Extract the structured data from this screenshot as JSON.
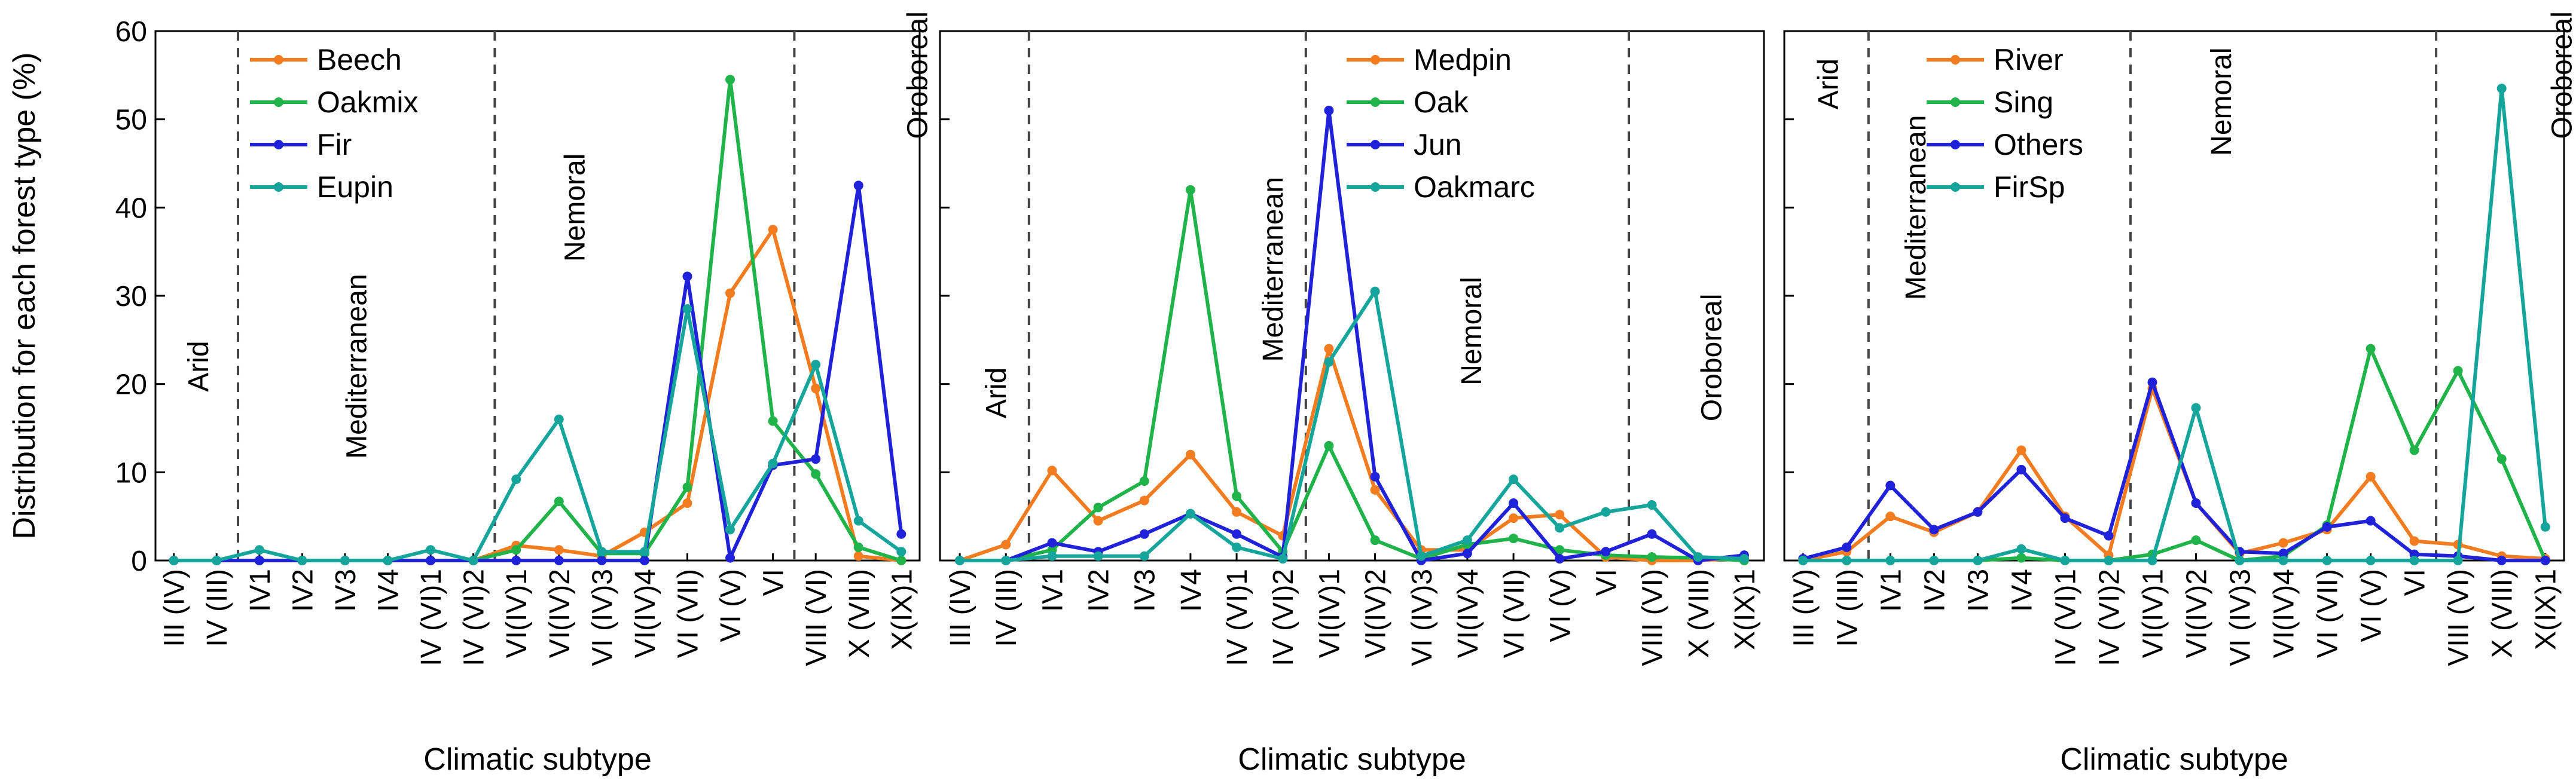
{
  "figure": {
    "ylabel": "Distribution  for each forest type  (%)",
    "xlabel": "Climatic subtype",
    "ylim": [
      0,
      60
    ],
    "yticks": [
      0,
      10,
      20,
      30,
      40,
      50,
      60
    ]
  },
  "chart_data": [
    {
      "type": "line",
      "panel": 1,
      "categories": [
        "III (IV)",
        "IV (III)",
        "IV1",
        "IV2",
        "IV3",
        "IV4",
        "IV (VI)1",
        "IV (VI)2",
        "VI(IV)1",
        "VI(IV)2",
        "VI (IV)3",
        "VI(IV)4",
        "VI (VII)",
        "VI (V)",
        "VI",
        "VIII (VI)",
        "X (VIII)",
        "X(IX)1"
      ],
      "xlabel": "Climatic subtype",
      "ylabel": "Distribution  for each forest type  (%)",
      "ylim": [
        0,
        60
      ],
      "show_ytick_labels": true,
      "zone_dividers_after_index": [
        1,
        7,
        14
      ],
      "zones": [
        {
          "label": "Arid",
          "center_index": 0.8,
          "y": 22,
          "vertical": true
        },
        {
          "label": "Mediterranean",
          "center_index": 4.5,
          "y": 22,
          "vertical": true
        },
        {
          "label": "Nemoral",
          "center_index": 9.6,
          "y": 40,
          "vertical": true
        },
        {
          "label": "Oroboreal",
          "center_index": 17.6,
          "y": 55,
          "vertical": true
        }
      ],
      "series": [
        {
          "name": "Beech",
          "color": "#f47c20",
          "values": [
            0,
            0,
            0,
            0,
            0,
            0,
            0,
            0,
            1.7,
            1.2,
            0.5,
            3.2,
            6.5,
            30.3,
            37.5,
            19.5,
            0.5,
            0
          ]
        },
        {
          "name": "Oakmix",
          "color": "#1fb34a",
          "values": [
            0,
            0,
            0,
            0,
            0,
            0,
            0,
            0,
            1.2,
            6.7,
            0.8,
            0.8,
            8.3,
            54.5,
            15.8,
            9.8,
            1.5,
            0
          ]
        },
        {
          "name": "Fir",
          "color": "#1f22d9",
          "values": [
            0,
            0,
            0,
            0,
            0,
            0,
            0,
            0,
            0,
            0,
            0,
            0,
            32.2,
            0.3,
            10.8,
            11.5,
            42.5,
            3
          ]
        },
        {
          "name": "Eupin",
          "color": "#15a59b",
          "values": [
            0,
            0,
            1.2,
            0,
            0,
            0,
            1.2,
            0,
            9.2,
            16,
            1,
            1,
            28.5,
            3.5,
            11,
            22.2,
            4.5,
            1
          ]
        }
      ]
    },
    {
      "type": "line",
      "panel": 2,
      "categories": [
        "III (IV)",
        "IV (III)",
        "IV1",
        "IV2",
        "IV3",
        "IV4",
        "IV (VI)1",
        "IV (VI)2",
        "VI(IV)1",
        "VI(IV)2",
        "VI (IV)3",
        "VI(IV)4",
        "VI (VII)",
        "VI (V)",
        "VI",
        "VIII (VI)",
        "X (VIII)",
        "X(IX)1"
      ],
      "xlabel": "Climatic subtype",
      "ylim": [
        0,
        60
      ],
      "show_ytick_labels": false,
      "zone_dividers_after_index": [
        1,
        7,
        14
      ],
      "zones": [
        {
          "label": "Arid",
          "center_index": 1.0,
          "y": 19,
          "vertical": true
        },
        {
          "label": "Mediterranean",
          "center_index": 7.0,
          "y": 33,
          "vertical": true
        },
        {
          "label": "Nemoral",
          "center_index": 11.3,
          "y": 26,
          "vertical": true
        },
        {
          "label": "Oroboreal",
          "center_index": 16.5,
          "y": 23,
          "vertical": true
        }
      ],
      "series": [
        {
          "name": "Medpin",
          "color": "#f47c20",
          "values": [
            0,
            1.8,
            10.2,
            4.5,
            6.8,
            12,
            5.5,
            2.8,
            24,
            8,
            1.2,
            1.2,
            4.8,
            5.2,
            0.4,
            0,
            0,
            0.3
          ]
        },
        {
          "name": "Oak",
          "color": "#1fb34a",
          "values": [
            0,
            0,
            1.2,
            6,
            9,
            42,
            7.3,
            1,
            13,
            2.3,
            0.2,
            1.8,
            2.5,
            1.2,
            0.6,
            0.4,
            0.3,
            0
          ]
        },
        {
          "name": "Jun",
          "color": "#1f22d9",
          "values": [
            0,
            0,
            2,
            1,
            3,
            5.3,
            3,
            0.4,
            51,
            9.5,
            0,
            0.8,
            6.5,
            0.2,
            1,
            3,
            0,
            0.6
          ]
        },
        {
          "name": "Oakmarc",
          "color": "#15a59b",
          "values": [
            0,
            0,
            0.5,
            0.5,
            0.5,
            5.3,
            1.5,
            0.2,
            22.5,
            30.5,
            0.5,
            2.3,
            9.2,
            3.7,
            5.5,
            6.3,
            0.4,
            0.2
          ]
        }
      ]
    },
    {
      "type": "line",
      "panel": 3,
      "categories": [
        "III (IV)",
        "IV (III)",
        "IV1",
        "IV2",
        "IV3",
        "IV4",
        "IV (VI)1",
        "IV (VI)2",
        "VI(IV)1",
        "VI(IV)2",
        "VI (IV)3",
        "VI(IV)4",
        "VI (VII)",
        "VI (V)",
        "VI",
        "VIII (VI)",
        "X (VIII)",
        "X(IX)1"
      ],
      "xlabel": "Climatic subtype",
      "ylim": [
        0,
        60
      ],
      "show_ytick_labels": false,
      "zone_dividers_after_index": [
        1,
        7,
        14
      ],
      "zones": [
        {
          "label": "Arid",
          "center_index": 0.8,
          "y": 54,
          "vertical": true
        },
        {
          "label": "Mediterranean",
          "center_index": 2.8,
          "y": 40,
          "vertical": true
        },
        {
          "label": "Nemoral",
          "center_index": 9.8,
          "y": 52,
          "vertical": true
        },
        {
          "label": "Oroboreal",
          "center_index": 17.6,
          "y": 55,
          "vertical": true
        }
      ],
      "series": [
        {
          "name": "River",
          "color": "#f47c20",
          "values": [
            0,
            1,
            5,
            3.2,
            5.5,
            12.5,
            5,
            0.6,
            19.5,
            6.5,
            0.8,
            2,
            3.5,
            9.5,
            2.2,
            1.8,
            0.5,
            0.2
          ]
        },
        {
          "name": "Sing",
          "color": "#1fb34a",
          "values": [
            0,
            0,
            0,
            0,
            0,
            0.3,
            0,
            0,
            0.7,
            2.3,
            0,
            0.5,
            4,
            24,
            12.5,
            21.5,
            11.5,
            0
          ]
        },
        {
          "name": "Others",
          "color": "#1f22d9",
          "values": [
            0.2,
            1.5,
            8.5,
            3.5,
            5.5,
            10.3,
            4.8,
            2.8,
            20.2,
            6.5,
            1,
            0.8,
            3.8,
            4.5,
            0.7,
            0.5,
            0,
            0
          ]
        },
        {
          "name": "FirSp",
          "color": "#15a59b",
          "values": [
            0,
            0,
            0,
            0,
            0,
            1.3,
            0,
            0,
            0,
            17.3,
            0,
            0,
            0,
            0,
            0,
            0,
            53.5,
            3.8
          ]
        }
      ]
    }
  ]
}
